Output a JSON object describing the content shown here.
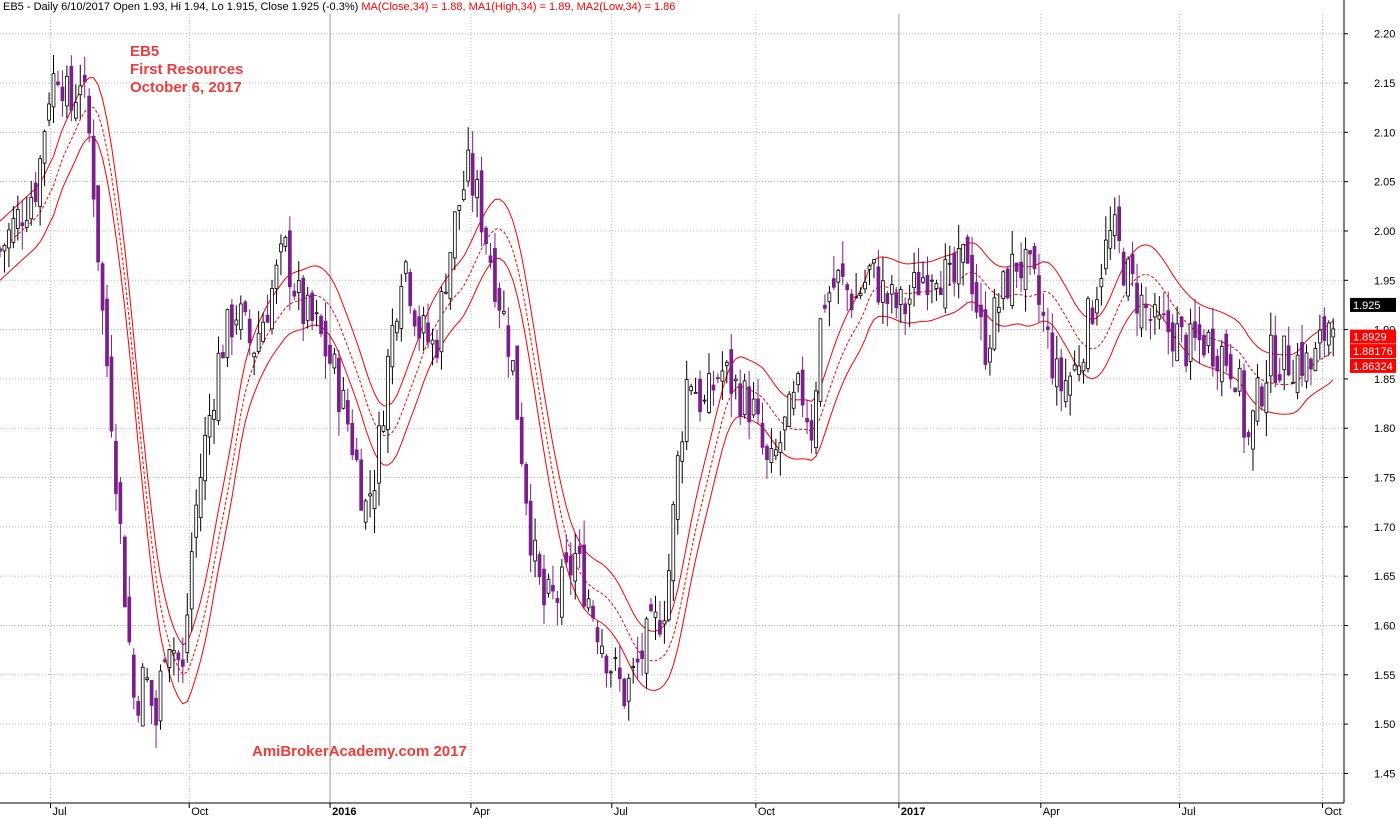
{
  "header": {
    "info": "EB5 - Daily 6/10/2017 Open 1.93, Hi 1.94, Lo 1.915, Close 1.925 (-0.3%)",
    "ma_close": "MA(Close,34) = 1.88,",
    "ma_high": "MA1(High,34) = 1.89,",
    "ma_low": "MA2(Low,34) = 1.86"
  },
  "annotations": {
    "ticker": "EB5",
    "company": "First Resources",
    "date": "October 6, 2017",
    "watermark": "AmiBrokerAcademy.com  2017"
  },
  "colors": {
    "up": "#000000",
    "down": "#7a1e8c",
    "ma": "#ff0000",
    "grid": "#b8b8b8",
    "label_bg": "#ff0000",
    "last_bg": "#000000"
  },
  "chart_data": {
    "type": "candlestick",
    "title": "EB5",
    "ylim": [
      1.42,
      2.22
    ],
    "y_ticks": [
      "2.20",
      "2.15",
      "2.10",
      "2.05",
      "2.00",
      "1.95",
      "1.90",
      "1.85",
      "1.80",
      "1.75",
      "1.70",
      "1.65",
      "1.60",
      "1.55",
      "1.50",
      "1.45"
    ],
    "x_ticks": [
      {
        "label": "Jul",
        "pos": 0.047,
        "bold": false
      },
      {
        "label": "Oct",
        "pos": 0.176,
        "bold": false
      },
      {
        "label": "2016",
        "pos": 0.307,
        "bold": true
      },
      {
        "label": "Apr",
        "pos": 0.438,
        "bold": false
      },
      {
        "label": "Jul",
        "pos": 0.569,
        "bold": false
      },
      {
        "label": "Oct",
        "pos": 0.703,
        "bold": false
      },
      {
        "label": "2017",
        "pos": 0.836,
        "bold": true
      },
      {
        "label": "Apr",
        "pos": 0.968,
        "bold": false
      },
      {
        "label": "Jul",
        "pos": 1.097,
        "bold": false
      },
      {
        "label": "Oct",
        "pos": 1.23,
        "bold": false
      }
    ],
    "price_path": [
      [
        0,
        1.98
      ],
      [
        0.02,
        2.02
      ],
      [
        0.035,
        2.05
      ],
      [
        0.045,
        2.14
      ],
      [
        0.055,
        2.17
      ],
      [
        0.065,
        2.12
      ],
      [
        0.075,
        2.16
      ],
      [
        0.085,
        2.08
      ],
      [
        0.095,
        1.92
      ],
      [
        0.105,
        1.8
      ],
      [
        0.115,
        1.65
      ],
      [
        0.125,
        1.52
      ],
      [
        0.135,
        1.55
      ],
      [
        0.145,
        1.5
      ],
      [
        0.155,
        1.6
      ],
      [
        0.17,
        1.55
      ],
      [
        0.18,
        1.7
      ],
      [
        0.19,
        1.78
      ],
      [
        0.205,
        1.88
      ],
      [
        0.22,
        1.92
      ],
      [
        0.235,
        1.88
      ],
      [
        0.25,
        1.93
      ],
      [
        0.265,
        1.98
      ],
      [
        0.28,
        1.92
      ],
      [
        0.295,
        1.9
      ],
      [
        0.31,
        1.86
      ],
      [
        0.325,
        1.8
      ],
      [
        0.34,
        1.72
      ],
      [
        0.35,
        1.76
      ],
      [
        0.36,
        1.86
      ],
      [
        0.375,
        1.98
      ],
      [
        0.39,
        1.9
      ],
      [
        0.405,
        1.88
      ],
      [
        0.415,
        1.96
      ],
      [
        0.425,
        2.02
      ],
      [
        0.435,
        2.06
      ],
      [
        0.445,
        2.03
      ],
      [
        0.455,
        1.98
      ],
      [
        0.465,
        1.93
      ],
      [
        0.475,
        1.88
      ],
      [
        0.485,
        1.78
      ],
      [
        0.495,
        1.68
      ],
      [
        0.505,
        1.62
      ],
      [
        0.52,
        1.63
      ],
      [
        0.535,
        1.67
      ],
      [
        0.55,
        1.62
      ],
      [
        0.565,
        1.57
      ],
      [
        0.58,
        1.53
      ],
      [
        0.59,
        1.55
      ],
      [
        0.6,
        1.58
      ],
      [
        0.61,
        1.6
      ],
      [
        0.62,
        1.63
      ],
      [
        0.63,
        1.76
      ],
      [
        0.64,
        1.86
      ],
      [
        0.655,
        1.82
      ],
      [
        0.67,
        1.86
      ],
      [
        0.685,
        1.84
      ],
      [
        0.7,
        1.82
      ],
      [
        0.715,
        1.75
      ],
      [
        0.73,
        1.8
      ],
      [
        0.745,
        1.84
      ],
      [
        0.755,
        1.8
      ],
      [
        0.765,
        1.93
      ],
      [
        0.78,
        1.95
      ],
      [
        0.795,
        1.93
      ],
      [
        0.81,
        1.96
      ],
      [
        0.825,
        1.93
      ],
      [
        0.84,
        1.92
      ],
      [
        0.855,
        1.95
      ],
      [
        0.87,
        1.97
      ],
      [
        0.885,
        1.94
      ],
      [
        0.9,
        1.98
      ],
      [
        0.915,
        1.88
      ],
      [
        0.93,
        1.93
      ],
      [
        0.945,
        1.97
      ],
      [
        0.96,
        1.95
      ],
      [
        0.97,
        1.91
      ],
      [
        0.985,
        1.84
      ],
      [
        1.0,
        1.86
      ],
      [
        1.015,
        1.92
      ],
      [
        1.025,
        1.97
      ],
      [
        1.035,
        2.0
      ],
      [
        1.05,
        1.95
      ],
      [
        1.06,
        1.93
      ],
      [
        1.075,
        1.9
      ],
      [
        1.09,
        1.9
      ],
      [
        1.105,
        1.88
      ],
      [
        1.12,
        1.89
      ],
      [
        1.135,
        1.88
      ],
      [
        1.15,
        1.86
      ],
      [
        1.16,
        1.78
      ],
      [
        1.17,
        1.83
      ],
      [
        1.18,
        1.87
      ],
      [
        1.195,
        1.87
      ],
      [
        1.21,
        1.87
      ],
      [
        1.22,
        1.86
      ],
      [
        1.23,
        1.89
      ],
      [
        1.24,
        1.925
      ]
    ],
    "ma_offsets": {
      "high": 0.03,
      "low": -0.03
    },
    "last_close": 1.925,
    "y_labels": {
      "close": "1.925",
      "ma_high": "1.8929",
      "ma_mid": "1.88176",
      "ma_low": "1.86324"
    }
  }
}
